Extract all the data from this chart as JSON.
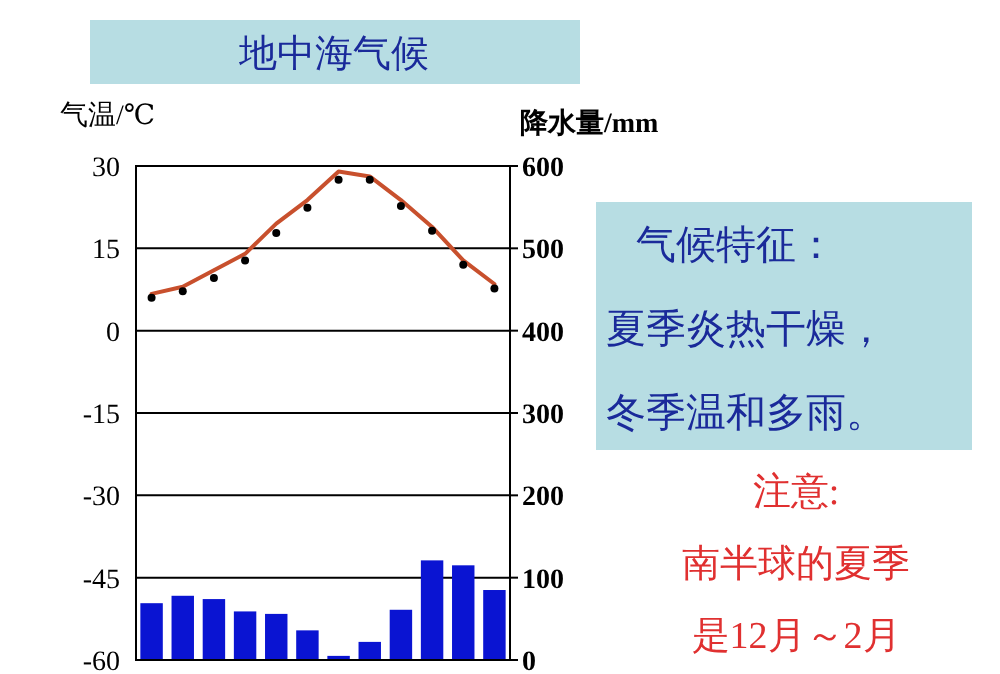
{
  "chart_data": {
    "type": "bar",
    "title": "地中海气候",
    "ylabel": "气温/℃",
    "y2label": "降水量/mm",
    "categories": [
      null,
      null,
      null,
      null,
      null,
      null,
      null,
      null,
      null,
      null,
      null,
      null
    ],
    "series": [
      {
        "type": "bar",
        "axis": "y2",
        "color": "#0a14d2",
        "values": [
          69,
          78,
          74,
          59,
          56,
          36,
          5,
          22,
          61,
          121,
          115,
          85
        ]
      },
      {
        "type": "line",
        "axis": "y",
        "color": "#c8502d",
        "marker": "none",
        "values": [
          6.7,
          8.0,
          11.0,
          14.0,
          19.5,
          23.8,
          29.0,
          28.1,
          23.8,
          18.9,
          12.8,
          8.5
        ]
      },
      {
        "type": "scatter",
        "axis": "y",
        "color": "#000000",
        "marker": "circle",
        "values": [
          6.0,
          7.2,
          9.6,
          12.8,
          17.8,
          22.4,
          27.5,
          27.5,
          22.7,
          18.2,
          12.0,
          7.7
        ]
      }
    ],
    "ylim": [
      -60,
      30
    ],
    "yticks": [
      -60,
      -45,
      -30,
      -15,
      0,
      15,
      30
    ],
    "y2lim": [
      0,
      600
    ],
    "y2ticks": [
      0,
      100,
      200,
      300,
      400,
      500,
      600
    ],
    "grid": "y",
    "legend": false,
    "annotations": [
      "气候特征：",
      "夏季炎热干燥，",
      "冬季温和多雨。",
      "注意:",
      "南半球的夏季",
      "是12月～2月"
    ]
  }
}
